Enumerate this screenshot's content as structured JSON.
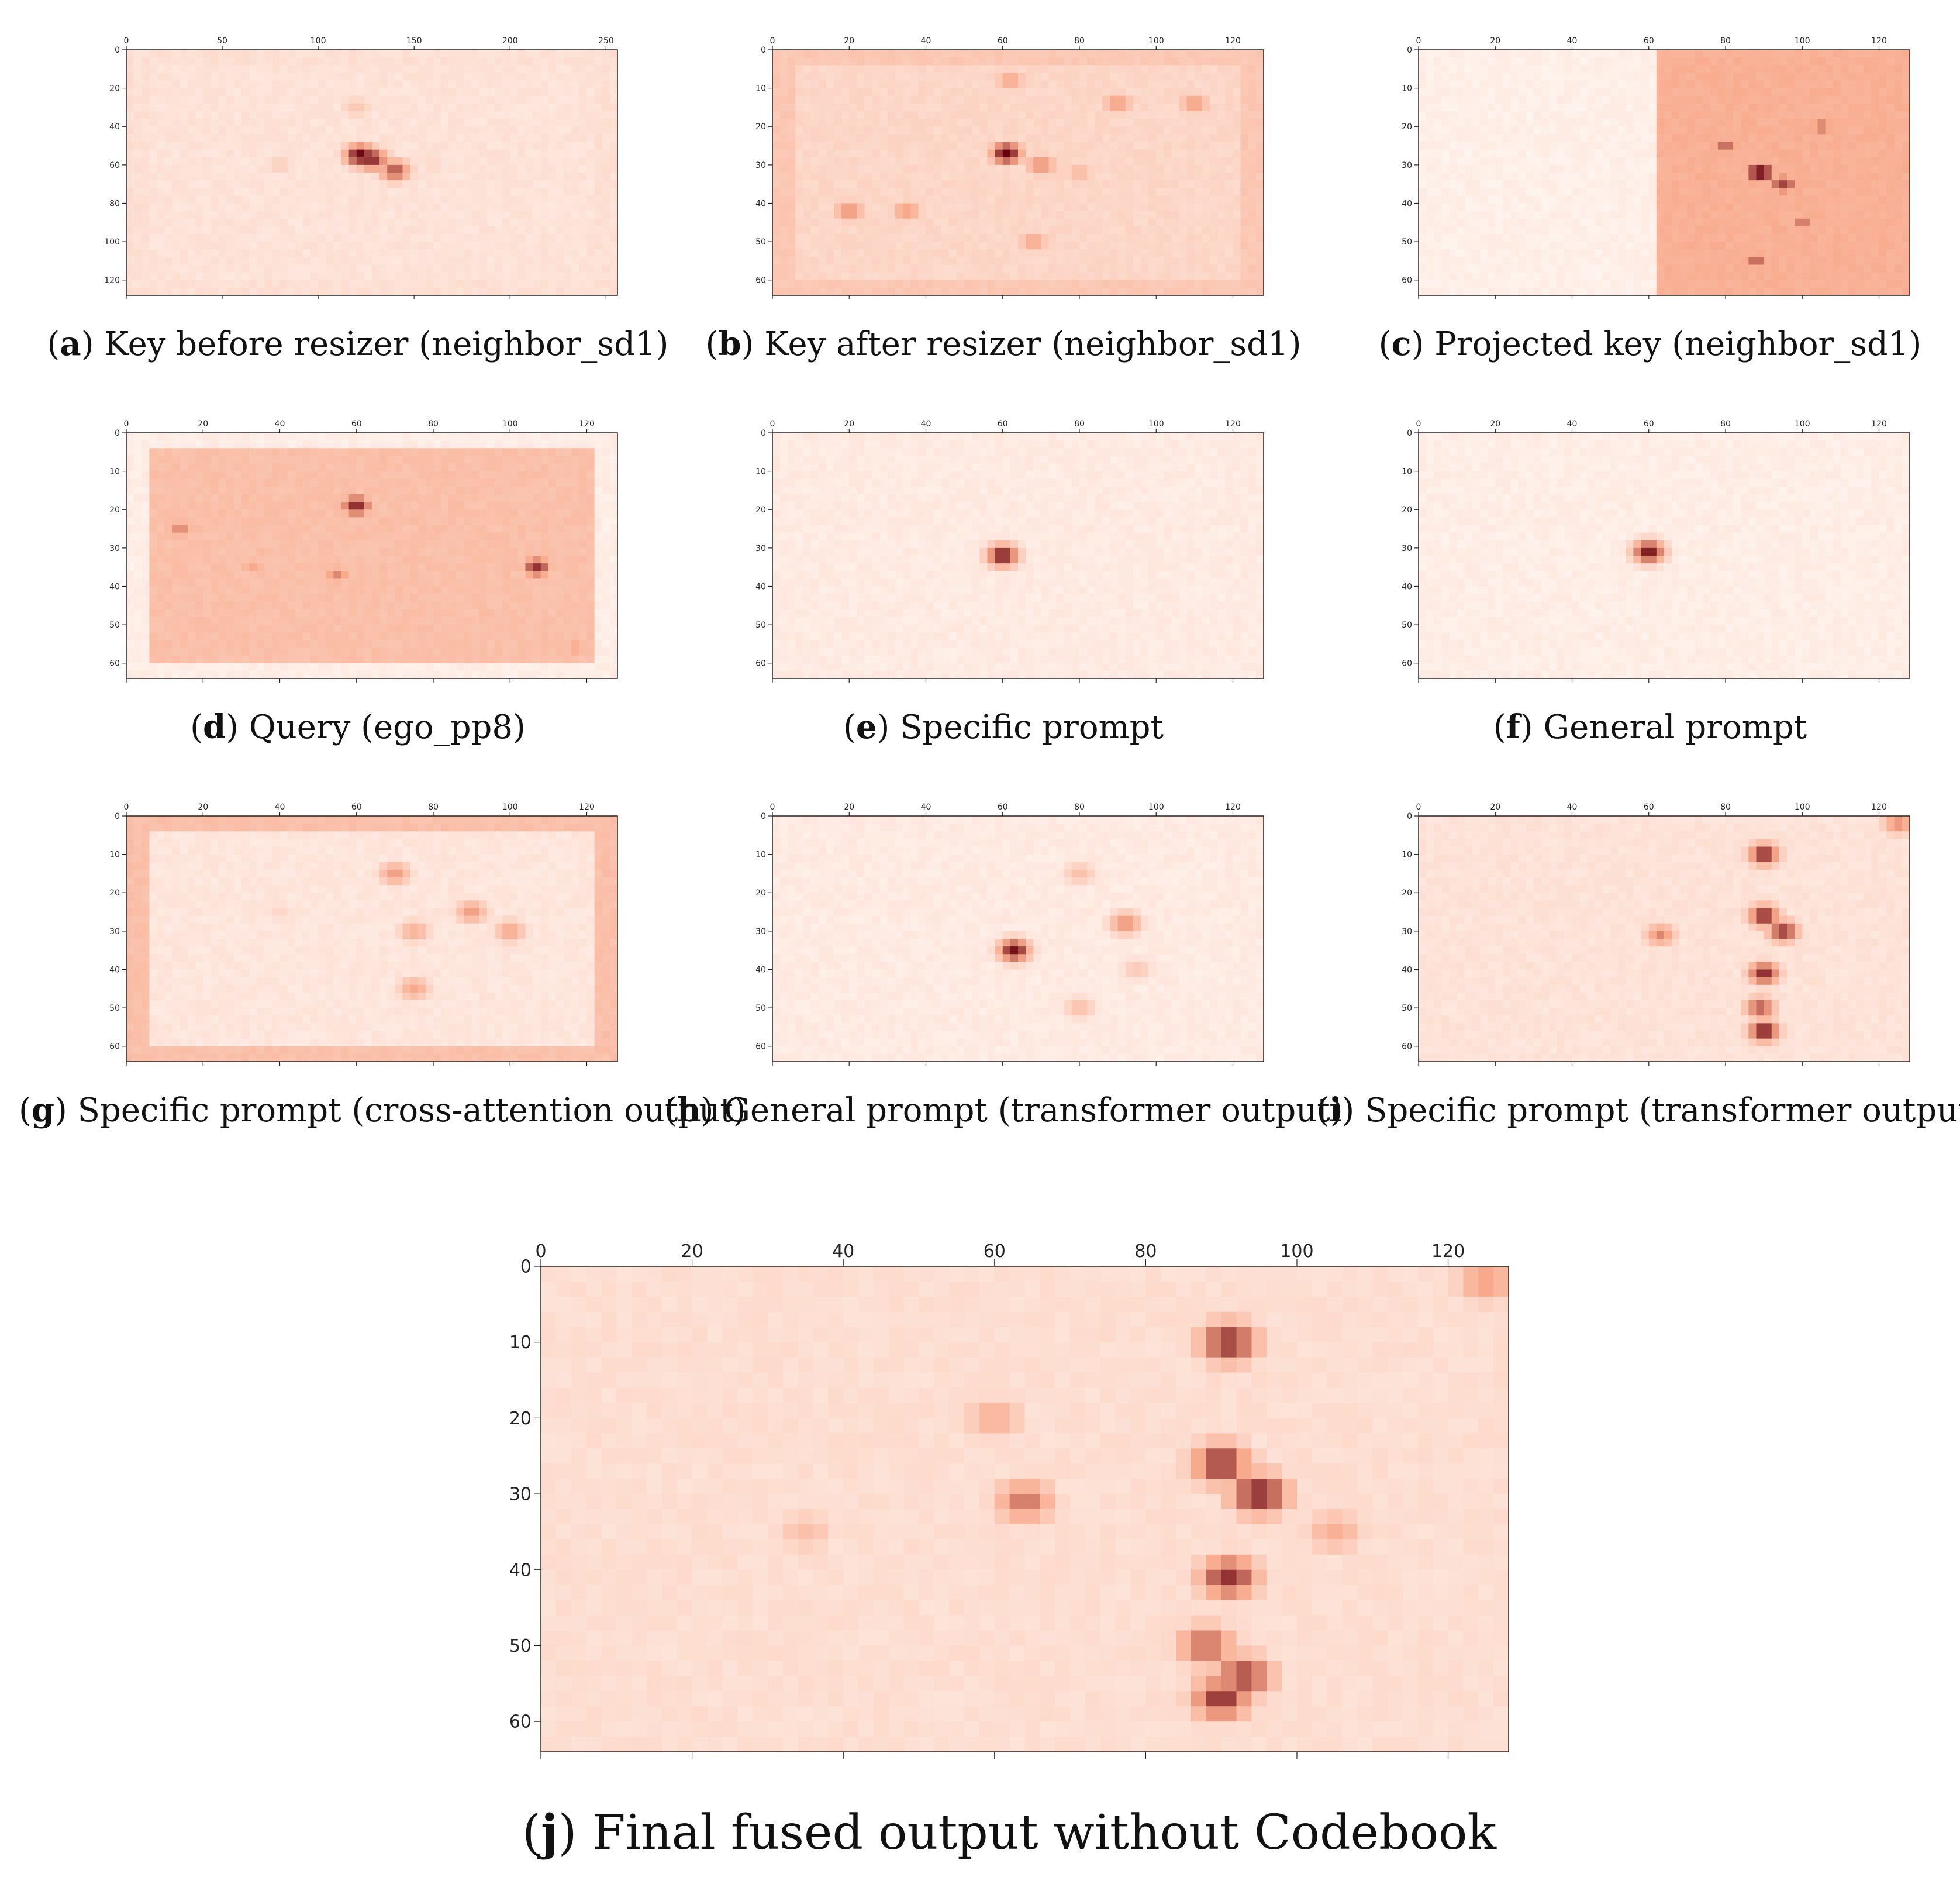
{
  "figure": {
    "colors": {
      "low": "#fff5f0",
      "mid": "#f8a98b",
      "high": "#67000d",
      "axis": "#222222"
    },
    "panels": [
      {
        "letter": "a",
        "caption": "Key before resizer (neighbor_sd1)",
        "chart_data": {
          "type": "heatmap",
          "colormap": "Reds",
          "xlim": [
            0,
            256
          ],
          "ylim": [
            128,
            0
          ],
          "x_ticks": [
            "0",
            "50",
            "100",
            "150",
            "200",
            "250"
          ],
          "y_ticks": [
            "0",
            "20",
            "40",
            "60",
            "80",
            "100",
            "120"
          ],
          "background_level": 0.12,
          "border_level": 0.14,
          "hotspots": [
            {
              "x": 122,
              "y": 55,
              "level": 1.0
            },
            {
              "x": 128,
              "y": 57,
              "level": 0.9
            },
            {
              "x": 140,
              "y": 63,
              "level": 0.75
            },
            {
              "x": 120,
              "y": 30,
              "level": 0.3
            },
            {
              "x": 80,
              "y": 60,
              "level": 0.25
            },
            {
              "x": 160,
              "y": 60,
              "level": 0.2
            }
          ]
        }
      },
      {
        "letter": "b",
        "caption": "Key after resizer (neighbor_sd1)",
        "chart_data": {
          "type": "heatmap",
          "colormap": "Reds",
          "xlim": [
            0,
            128
          ],
          "ylim": [
            64,
            0
          ],
          "x_ticks": [
            "0",
            "20",
            "40",
            "60",
            "80",
            "100",
            "120"
          ],
          "y_ticks": [
            "0",
            "10",
            "20",
            "30",
            "40",
            "50",
            "60"
          ],
          "background_level": 0.2,
          "border_level": 0.3,
          "hotspots": [
            {
              "x": 61,
              "y": 27,
              "level": 1.0
            },
            {
              "x": 70,
              "y": 30,
              "level": 0.6
            },
            {
              "x": 20,
              "y": 42,
              "level": 0.6
            },
            {
              "x": 35,
              "y": 42,
              "level": 0.55
            },
            {
              "x": 90,
              "y": 14,
              "level": 0.55
            },
            {
              "x": 110,
              "y": 14,
              "level": 0.55
            },
            {
              "x": 62,
              "y": 8,
              "level": 0.5
            },
            {
              "x": 68,
              "y": 50,
              "level": 0.5
            },
            {
              "x": 80,
              "y": 32,
              "level": 0.4
            }
          ]
        }
      },
      {
        "letter": "c",
        "caption": "Projected key (neighbor_sd1)",
        "chart_data": {
          "type": "heatmap",
          "colormap": "Reds",
          "xlim": [
            0,
            128
          ],
          "ylim": [
            64,
            0
          ],
          "x_ticks": [
            "0",
            "20",
            "40",
            "60",
            "80",
            "100",
            "120"
          ],
          "y_ticks": [
            "0",
            "10",
            "20",
            "30",
            "40",
            "50",
            "60"
          ],
          "split_at_x": 63,
          "left_level": 0.04,
          "right_level": 0.45,
          "hotspots": [
            {
              "x": 89,
              "y": 32,
              "level": 1.0
            },
            {
              "x": 95,
              "y": 35,
              "level": 0.8
            },
            {
              "x": 80,
              "y": 25,
              "level": 0.7
            },
            {
              "x": 105,
              "y": 20,
              "level": 0.65
            },
            {
              "x": 100,
              "y": 45,
              "level": 0.65
            },
            {
              "x": 88,
              "y": 55,
              "level": 0.7
            }
          ]
        }
      },
      {
        "letter": "d",
        "caption": "Query (ego_pp8)",
        "chart_data": {
          "type": "heatmap",
          "colormap": "Reds",
          "xlim": [
            0,
            128
          ],
          "ylim": [
            64,
            0
          ],
          "x_ticks": [
            "0",
            "20",
            "40",
            "60",
            "80",
            "100",
            "120"
          ],
          "y_ticks": [
            "0",
            "10",
            "20",
            "30",
            "40",
            "50",
            "60"
          ],
          "background_level": 0.35,
          "border_level": 0.05,
          "hotspots": [
            {
              "x": 60,
              "y": 19,
              "level": 0.9
            },
            {
              "x": 55,
              "y": 37,
              "level": 0.6
            },
            {
              "x": 107,
              "y": 35,
              "level": 0.85
            },
            {
              "x": 14,
              "y": 25,
              "level": 0.6
            },
            {
              "x": 33,
              "y": 35,
              "level": 0.5
            },
            {
              "x": 117,
              "y": 56,
              "level": 0.5
            }
          ]
        }
      },
      {
        "letter": "e",
        "caption": "Specific prompt",
        "chart_data": {
          "type": "heatmap",
          "colormap": "Reds",
          "xlim": [
            0,
            128
          ],
          "ylim": [
            64,
            0
          ],
          "x_ticks": [
            "0",
            "20",
            "40",
            "60",
            "80",
            "100",
            "120"
          ],
          "y_ticks": [
            "0",
            "10",
            "20",
            "30",
            "40",
            "50",
            "60"
          ],
          "background_level": 0.07,
          "hotspots": [
            {
              "x": 60,
              "y": 32,
              "level": 0.95
            }
          ]
        }
      },
      {
        "letter": "f",
        "caption": "General prompt",
        "chart_data": {
          "type": "heatmap",
          "colormap": "Reds",
          "xlim": [
            0,
            128
          ],
          "ylim": [
            64,
            0
          ],
          "x_ticks": [
            "0",
            "20",
            "40",
            "60",
            "80",
            "100",
            "120"
          ],
          "y_ticks": [
            "0",
            "10",
            "20",
            "30",
            "40",
            "50",
            "60"
          ],
          "background_level": 0.05,
          "hotspots": [
            {
              "x": 60,
              "y": 31,
              "level": 0.95
            }
          ]
        }
      },
      {
        "letter": "g",
        "caption": "Specific prompt (cross-attention output)",
        "chart_data": {
          "type": "heatmap",
          "colormap": "Reds",
          "xlim": [
            0,
            128
          ],
          "ylim": [
            64,
            0
          ],
          "x_ticks": [
            "0",
            "20",
            "40",
            "60",
            "80",
            "100",
            "120"
          ],
          "y_ticks": [
            "0",
            "10",
            "20",
            "30",
            "40",
            "50",
            "60"
          ],
          "background_level": 0.1,
          "border_level": 0.35,
          "hotspots": [
            {
              "x": 70,
              "y": 15,
              "level": 0.55
            },
            {
              "x": 75,
              "y": 30,
              "level": 0.45
            },
            {
              "x": 90,
              "y": 25,
              "level": 0.55
            },
            {
              "x": 100,
              "y": 30,
              "level": 0.5
            },
            {
              "x": 75,
              "y": 45,
              "level": 0.5
            },
            {
              "x": 40,
              "y": 25,
              "level": 0.2
            }
          ]
        }
      },
      {
        "letter": "h",
        "caption": "General prompt (transformer output)",
        "chart_data": {
          "type": "heatmap",
          "colormap": "Reds",
          "xlim": [
            0,
            128
          ],
          "ylim": [
            64,
            0
          ],
          "x_ticks": [
            "0",
            "20",
            "40",
            "60",
            "80",
            "100",
            "120"
          ],
          "y_ticks": [
            "0",
            "10",
            "20",
            "30",
            "40",
            "50",
            "60"
          ],
          "background_level": 0.07,
          "hotspots": [
            {
              "x": 63,
              "y": 35,
              "level": 0.95
            },
            {
              "x": 92,
              "y": 28,
              "level": 0.6
            },
            {
              "x": 80,
              "y": 15,
              "level": 0.35
            },
            {
              "x": 80,
              "y": 50,
              "level": 0.35
            },
            {
              "x": 95,
              "y": 40,
              "level": 0.3
            }
          ]
        }
      },
      {
        "letter": "i",
        "caption": "Specific prompt (transformer output)",
        "chart_data": {
          "type": "heatmap",
          "colormap": "Reds",
          "xlim": [
            0,
            128
          ],
          "ylim": [
            64,
            0
          ],
          "x_ticks": [
            "0",
            "20",
            "40",
            "60",
            "80",
            "100",
            "120"
          ],
          "y_ticks": [
            "0",
            "10",
            "20",
            "30",
            "40",
            "50",
            "60"
          ],
          "background_level": 0.12,
          "hotspots": [
            {
              "x": 90,
              "y": 10,
              "level": 0.9
            },
            {
              "x": 90,
              "y": 26,
              "level": 0.9
            },
            {
              "x": 95,
              "y": 30,
              "level": 0.85
            },
            {
              "x": 90,
              "y": 41,
              "level": 0.9
            },
            {
              "x": 89,
              "y": 50,
              "level": 0.75
            },
            {
              "x": 90,
              "y": 56,
              "level": 0.95
            },
            {
              "x": 125,
              "y": 2,
              "level": 0.6
            },
            {
              "x": 63,
              "y": 31,
              "level": 0.6
            }
          ]
        }
      }
    ],
    "main": {
      "letter": "j",
      "caption": "Final fused output without Codebook",
      "chart_data": {
        "type": "heatmap",
        "colormap": "Reds",
        "xlim": [
          0,
          128
        ],
        "ylim": [
          64,
          0
        ],
        "x_ticks": [
          "0",
          "20",
          "40",
          "60",
          "80",
          "100",
          "120"
        ],
        "y_ticks": [
          "0",
          "10",
          "20",
          "30",
          "40",
          "50",
          "60"
        ],
        "background_level": 0.15,
        "hotspots": [
          {
            "x": 91,
            "y": 10,
            "level": 0.85
          },
          {
            "x": 90,
            "y": 26,
            "level": 0.85
          },
          {
            "x": 95,
            "y": 30,
            "level": 0.9
          },
          {
            "x": 91,
            "y": 41,
            "level": 0.85
          },
          {
            "x": 88,
            "y": 50,
            "level": 0.7
          },
          {
            "x": 90,
            "y": 57,
            "level": 0.85
          },
          {
            "x": 93,
            "y": 54,
            "level": 0.8
          },
          {
            "x": 64,
            "y": 31,
            "level": 0.65
          },
          {
            "x": 125,
            "y": 2,
            "level": 0.55
          },
          {
            "x": 60,
            "y": 20,
            "level": 0.45
          },
          {
            "x": 105,
            "y": 35,
            "level": 0.45
          },
          {
            "x": 35,
            "y": 35,
            "level": 0.35
          }
        ]
      }
    }
  }
}
